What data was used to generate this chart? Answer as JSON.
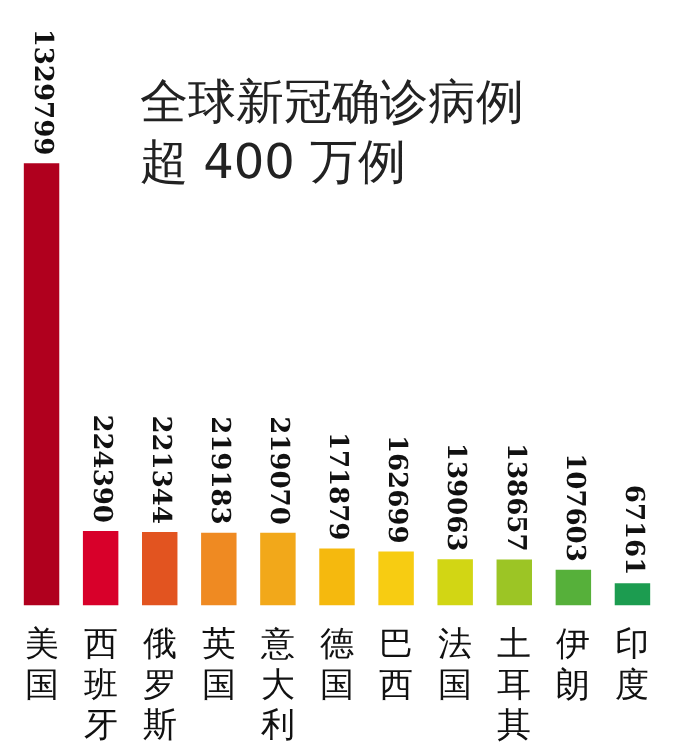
{
  "chart_data": {
    "type": "bar",
    "title": "全球新冠确诊病例超 400 万例",
    "categories": [
      "美国",
      "西班牙",
      "俄罗斯",
      "英国",
      "意大利",
      "德国",
      "巴西",
      "法国",
      "土耳其",
      "伊朗",
      "印度"
    ],
    "values": [
      1329799,
      224390,
      221344,
      219183,
      219070,
      171879,
      162699,
      139063,
      138657,
      107603,
      67161
    ],
    "colors": [
      "#b0001e",
      "#d8002a",
      "#e25420",
      "#ef8a22",
      "#f2a81a",
      "#f5b90e",
      "#f7cc12",
      "#d2d614",
      "#9cc525",
      "#56b03a",
      "#1c9c50"
    ],
    "data_labels": true,
    "grid": false,
    "legend": false
  }
}
